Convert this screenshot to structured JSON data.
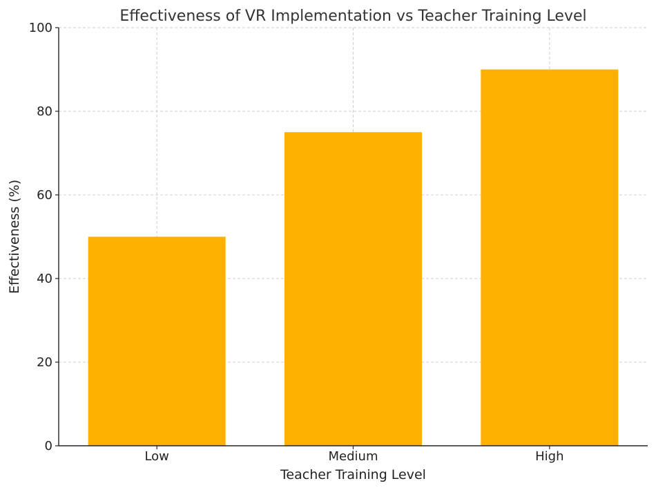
{
  "chart_data": {
    "type": "bar",
    "title": "Effectiveness of VR Implementation vs Teacher Training Level",
    "xlabel": "Teacher Training Level",
    "ylabel": "Effectiveness (%)",
    "categories": [
      "Low",
      "Medium",
      "High"
    ],
    "values": [
      50,
      75,
      90
    ],
    "ylim": [
      0,
      100
    ],
    "yticks": [
      0,
      20,
      40,
      60,
      80,
      100
    ],
    "grid": true,
    "colors": {
      "bar": "#FFB000",
      "grid": "#cccccc",
      "axis": "#222222",
      "title": "#333333"
    }
  }
}
